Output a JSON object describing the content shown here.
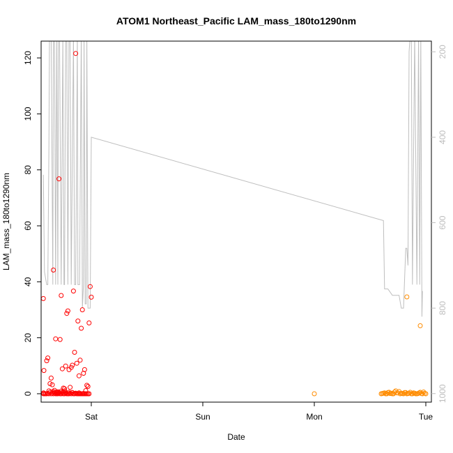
{
  "chart_data": {
    "type": "scatter",
    "title": "ATOM1 Northeast_Pacific LAM_mass_180to1290nm",
    "xlabel": "Date",
    "ylabel": "LAM_mass_180to1290nm",
    "x_unit": "days since Fri 00:00",
    "x_ticks": [
      {
        "label": "Sat",
        "value": 1
      },
      {
        "label": "Sun",
        "value": 2
      },
      {
        "label": "Mon",
        "value": 3
      },
      {
        "label": "Tue",
        "value": 4
      }
    ],
    "xlim": [
      0.55,
      4.05
    ],
    "ylim": [
      -3,
      126
    ],
    "y_ticks": [
      0,
      20,
      40,
      60,
      80,
      100,
      120
    ],
    "y2_ticks": [
      200,
      400,
      600,
      800,
      1000
    ],
    "y2lim": [
      1020,
      175
    ],
    "grid": false,
    "colors": {
      "series1": "#ff0000",
      "series2": "#ff8c00",
      "overlay": "#bebebe",
      "axis": "#000000"
    },
    "series": [
      {
        "color": "#ff0000",
        "x": [
          0.57,
          0.575,
          0.58,
          0.59,
          0.6,
          0.61,
          0.62,
          0.63,
          0.64,
          0.65,
          0.66,
          0.67,
          0.68,
          0.69,
          0.7,
          0.71,
          0.72,
          0.73,
          0.74,
          0.75,
          0.76,
          0.77,
          0.78,
          0.79,
          0.8,
          0.81,
          0.82,
          0.83,
          0.84,
          0.85,
          0.86,
          0.87,
          0.88,
          0.89,
          0.9,
          0.91,
          0.92,
          0.93,
          0.94,
          0.95,
          0.96,
          0.97,
          0.98,
          0.99,
          1.0,
          0.571,
          0.572,
          0.6,
          0.61,
          0.62,
          0.63,
          0.64,
          0.65,
          0.66,
          0.67,
          0.68,
          0.69,
          0.7,
          0.71,
          0.72,
          0.73,
          0.74,
          0.75,
          0.76,
          0.77,
          0.78,
          0.79,
          0.8,
          0.81,
          0.82,
          0.83,
          0.84,
          0.85,
          0.86,
          0.87,
          0.88,
          0.89,
          0.9,
          0.91,
          0.92,
          0.93,
          0.94,
          0.95,
          0.96,
          0.97,
          0.98,
          0.655,
          0.67,
          0.685,
          0.7,
          0.715,
          0.73,
          0.745,
          0.76,
          0.775,
          0.8,
          0.83,
          0.86,
          0.89,
          0.93
        ],
        "y": [
          34,
          8.3,
          0,
          0,
          11.8,
          12.8,
          1,
          3.6,
          5.6,
          3.2,
          44.2,
          0.6,
          19.6,
          0.3,
          0.4,
          76.8,
          19.4,
          35.1,
          8.9,
          2,
          1.8,
          9.9,
          28.7,
          29.6,
          8.6,
          2.3,
          9.4,
          10.2,
          36.7,
          14.8,
          121.6,
          10.9,
          26,
          6.4,
          12,
          23.4,
          30,
          7.3,
          8.6,
          1.1,
          3,
          2.6,
          25.3,
          38.3,
          34.5,
          0,
          0.3,
          0,
          0.2,
          0,
          0.5,
          0,
          0.3,
          0,
          0.2,
          0,
          0,
          0,
          0.2,
          0,
          0,
          0.3,
          0,
          0,
          0.2,
          0,
          0,
          0,
          0.2,
          0,
          0.4,
          0,
          0,
          0.2,
          0,
          0,
          0,
          0,
          0,
          0,
          0,
          0,
          0,
          0,
          0,
          0,
          0.8,
          1.2,
          0.5,
          0.7,
          0.4,
          0.9,
          0.6,
          1,
          0.3,
          0.5,
          0.4,
          0.2,
          0.3,
          0.1
        ]
      },
      {
        "color": "#ff8c00",
        "x": [
          3.0,
          3.6,
          3.62,
          3.64,
          3.66,
          3.68,
          3.7,
          3.72,
          3.74,
          3.76,
          3.78,
          3.8,
          3.82,
          3.84,
          3.86,
          3.88,
          3.9,
          3.92,
          3.94,
          3.96,
          3.98,
          4.0,
          3.61,
          3.63,
          3.65,
          3.67,
          3.69,
          3.71,
          3.73,
          3.75,
          3.77,
          3.79,
          3.81,
          3.83,
          3.85,
          3.87,
          3.89,
          3.91,
          3.93,
          3.95,
          3.97,
          3.99,
          3.83,
          3.95
        ],
        "y": [
          0,
          0,
          0.2,
          0,
          0.4,
          0.1,
          0,
          0.6,
          0.3,
          0.8,
          0.2,
          0,
          0.4,
          0.1,
          0.5,
          0,
          0.2,
          0,
          0.3,
          0.1,
          0.6,
          0,
          0.1,
          0.3,
          0,
          0.5,
          0.2,
          0,
          1,
          0.3,
          0,
          0.1,
          0.4,
          0,
          0.2,
          0,
          0.3,
          0,
          0.1,
          0.5,
          0,
          0.2,
          34.6,
          24.3
        ]
      }
    ],
    "overlay": {
      "color": "#bebebe",
      "x": [
        0.57,
        0.58,
        0.6,
        0.61,
        0.62,
        0.625,
        0.64,
        0.655,
        0.66,
        0.67,
        0.68,
        0.69,
        0.7,
        0.705,
        0.715,
        0.73,
        0.745,
        0.755,
        0.76,
        0.77,
        0.78,
        0.79,
        0.8,
        0.81,
        0.82,
        0.84,
        0.85,
        0.86,
        0.875,
        0.88,
        0.895,
        0.91,
        0.92,
        0.93,
        0.935,
        0.945,
        0.955,
        0.96,
        0.97,
        0.98,
        0.99,
        1.0,
        3.62,
        3.63,
        3.66,
        3.7,
        3.72,
        3.76,
        3.78,
        3.8,
        3.82,
        3.83,
        3.84,
        3.85,
        3.86,
        3.87,
        3.88,
        3.9,
        3.92,
        3.935,
        3.945,
        3.955,
        3.965,
        3.97
      ],
      "y2": [
        488,
        715,
        745,
        745,
        420,
        160,
        160,
        745,
        160,
        160,
        745,
        160,
        745,
        160,
        160,
        745,
        160,
        745,
        745,
        160,
        160,
        745,
        160,
        160,
        745,
        160,
        745,
        745,
        160,
        745,
        745,
        160,
        800,
        745,
        160,
        790,
        790,
        160,
        800,
        800,
        800,
        400,
        595,
        755,
        755,
        770,
        770,
        770,
        800,
        800,
        660,
        660,
        700,
        200,
        160,
        160,
        745,
        160,
        745,
        160,
        745,
        160,
        820,
        760
      ]
    }
  }
}
